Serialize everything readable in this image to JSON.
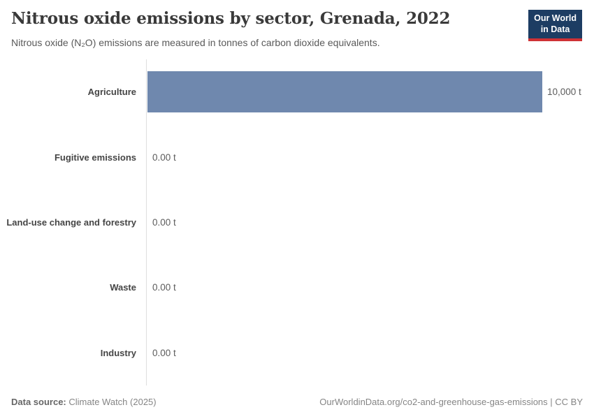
{
  "header": {
    "title": "Nitrous oxide emissions by sector, Grenada, 2022",
    "subtitle": "Nitrous oxide (N₂O) emissions are measured in tonnes of carbon dioxide equivalents.",
    "logo": {
      "line1": "Our World",
      "line2": "in Data"
    }
  },
  "chart_data": {
    "type": "bar",
    "orientation": "horizontal",
    "title": "Nitrous oxide emissions by sector, Grenada, 2022",
    "categories": [
      "Agriculture",
      "Fugitive emissions",
      "Land-use change and forestry",
      "Waste",
      "Industry"
    ],
    "values": [
      10000,
      0,
      0,
      0,
      0
    ],
    "value_labels": [
      "10,000 t",
      "0.00 t",
      "0.00 t",
      "0.00 t",
      "0.00 t"
    ],
    "unit": "t",
    "xlim": [
      0,
      10000
    ],
    "grid": false,
    "legend": "none",
    "bar_color": "#6f88ae"
  },
  "footer": {
    "datasource_label": "Data source:",
    "datasource_value": "Climate Watch (2025)",
    "credit": "OurWorldinData.org/co2-and-greenhouse-gas-emissions | CC BY"
  },
  "colors": {
    "bar": "#6f88ae",
    "logo_bg": "#1d3d63",
    "logo_accent": "#cf3235",
    "axis_line": "#dedede"
  }
}
